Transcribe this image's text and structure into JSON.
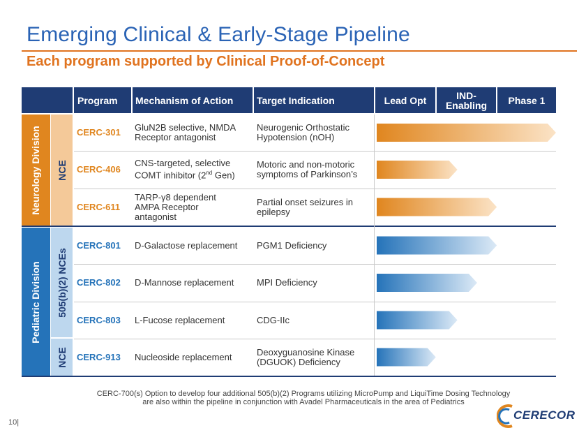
{
  "slide": {
    "title": "Emerging Clinical & Early-Stage Pipeline",
    "subtitle": "Each program supported by Clinical Proof-of-Concept",
    "page_number": "10|",
    "footnote_line1": "CERC-700(s) Option to develop four additional 505(b)(2) Programs utilizing MicroPump and LiquiTime Dosing Technology",
    "footnote_line2": "are also within the pipeline in conjunction with Avadel Pharmaceuticals in the area of Pediatrics",
    "logo_text": "CERECOR"
  },
  "headers": {
    "program": "Program",
    "mechanism": "Mechanism of Action",
    "indication": "Target Indication",
    "lead_opt": "Lead Opt",
    "ind_enabling": "IND-Enabling",
    "phase1": "Phase 1"
  },
  "divisions": {
    "neurology": "Neurology Division",
    "pediatric": "Pediatric Division",
    "nce": "NCE",
    "nces_505": "505(b)(2) NCEs",
    "nce2": "NCE"
  },
  "colors": {
    "navy": "#1f3c74",
    "orange": "#e0861f",
    "blue": "#2573b9"
  },
  "programs": [
    {
      "name": "CERC-301",
      "moa": "GluN2B selective, NMDA Receptor antagonist",
      "indication": "Neurogenic Orthostatic Hypotension (nOH)",
      "progress": 1.0
    },
    {
      "name": "CERC-406",
      "moa_a": "CNS-targeted, selective COMT inhibitor (2",
      "moa_sup": "nd",
      "moa_b": " Gen)",
      "indication": "Motoric and non-motoric symptoms of Parkinson’s",
      "progress": 0.45
    },
    {
      "name": "CERC-611",
      "moa": "TARP-γ8 dependent AMPA Receptor antagonist",
      "indication": "Partial onset seizures in epilepsy",
      "progress": 0.67
    },
    {
      "name": "CERC-801",
      "moa": "D-Galactose replacement",
      "indication": "PGM1 Deficiency",
      "progress": 0.67
    },
    {
      "name": "CERC-802",
      "moa": "D-Mannose replacement",
      "indication": "MPI Deficiency",
      "progress": 0.56
    },
    {
      "name": "CERC-803",
      "moa": "L-Fucose replacement",
      "indication": "CDG-IIc",
      "progress": 0.45
    },
    {
      "name": "CERC-913",
      "moa": "Nucleoside replacement",
      "indication": "Deoxyguanosine Kinase (DGUOK) Deficiency",
      "progress": 0.33
    }
  ]
}
